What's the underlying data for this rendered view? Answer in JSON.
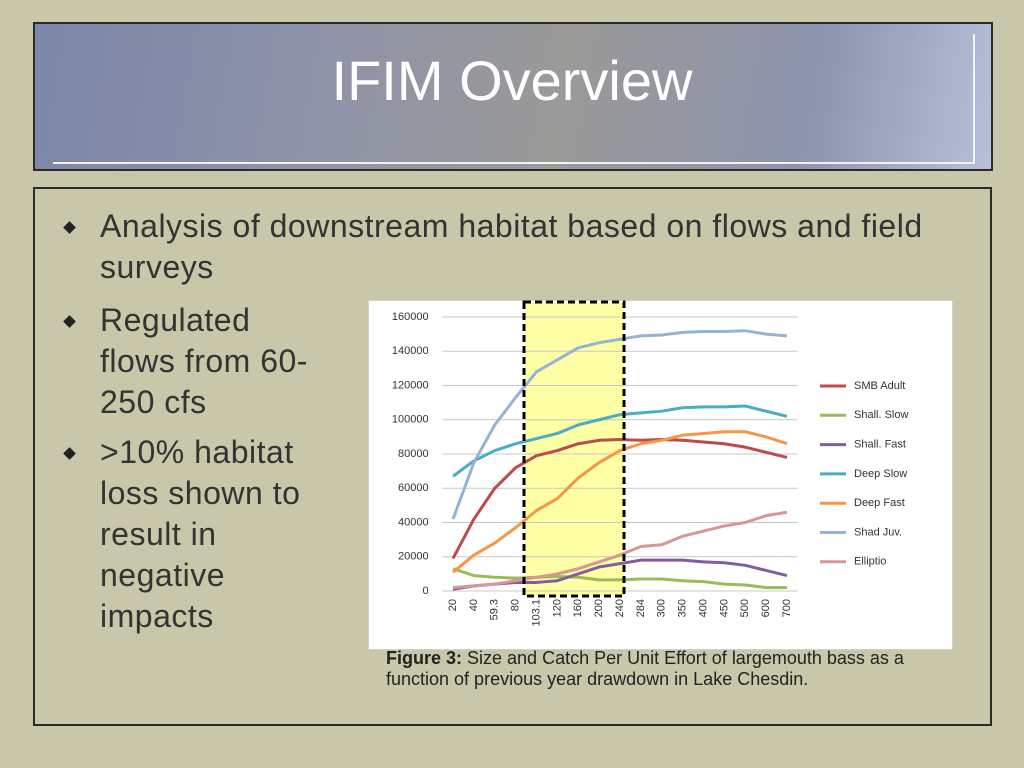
{
  "title": "IFIM Overview",
  "bullets": [
    "Analysis of downstream habitat based on flows and field surveys",
    "Regulated flows from 60-250 cfs",
    ">10% habitat loss shown to result in negative impacts"
  ],
  "chart_data": {
    "type": "line",
    "categories": [
      "20",
      "40",
      "59.3",
      "80",
      "103.1",
      "120",
      "160",
      "200",
      "240",
      "284",
      "300",
      "350",
      "400",
      "450",
      "500",
      "600",
      "700"
    ],
    "ylim": [
      0,
      160000
    ],
    "yticks": [
      0,
      20000,
      40000,
      60000,
      80000,
      100000,
      120000,
      140000,
      160000
    ],
    "grid": true,
    "legend": "right",
    "series": [
      {
        "name": "SMB Adult",
        "color": "#be4b48",
        "values": [
          19000,
          42000,
          60000,
          72000,
          79000,
          82000,
          86000,
          88000,
          88500,
          88000,
          88500,
          88000,
          87000,
          86000,
          84000,
          81000,
          78000
        ]
      },
      {
        "name": "Shall. Slow",
        "color": "#9bbb59",
        "values": [
          13000,
          9000,
          8000,
          7500,
          8000,
          8500,
          8000,
          6500,
          6500,
          7000,
          7000,
          6000,
          5500,
          4000,
          3500,
          2000,
          2000
        ]
      },
      {
        "name": "Shall. Fast",
        "color": "#7f5fa0",
        "values": [
          1000,
          3000,
          4000,
          5000,
          5000,
          6000,
          10000,
          14000,
          16000,
          18000,
          18000,
          18000,
          17000,
          16500,
          15000,
          12000,
          9000
        ]
      },
      {
        "name": "Deep Slow",
        "color": "#4bacc6",
        "values": [
          67000,
          76000,
          82000,
          86000,
          89000,
          92000,
          97000,
          100000,
          103000,
          104000,
          105000,
          107000,
          107500,
          107500,
          108000,
          105000,
          102000
        ]
      },
      {
        "name": "Deep Fast",
        "color": "#f79646",
        "values": [
          11000,
          21000,
          28000,
          37000,
          47000,
          54000,
          66000,
          75000,
          82000,
          86000,
          88000,
          91000,
          92000,
          93000,
          93000,
          90000,
          86000
        ]
      },
      {
        "name": "Shad Juv.",
        "color": "#95b3d7",
        "values": [
          42000,
          75000,
          97000,
          113000,
          128000,
          135000,
          142000,
          145000,
          147000,
          149000,
          149500,
          151000,
          151500,
          151500,
          152000,
          150000,
          149000
        ]
      },
      {
        "name": "Elliptio",
        "color": "#d99694",
        "values": [
          2000,
          3000,
          4000,
          6000,
          8000,
          10000,
          13000,
          17000,
          21000,
          26000,
          27000,
          32000,
          35000,
          38000,
          40000,
          44000,
          46000
        ]
      }
    ]
  },
  "caption": {
    "label": "Figure 3:",
    "text": "Size and Catch Per Unit Effort of largemouth bass as a function of previous year drawdown in Lake Chesdin."
  }
}
